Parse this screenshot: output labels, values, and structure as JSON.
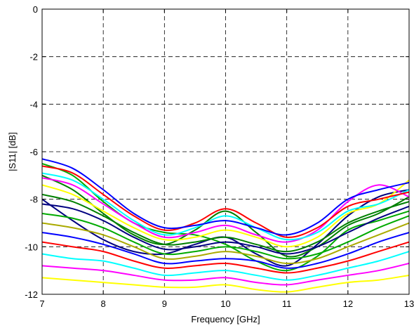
{
  "chart_data": {
    "type": "line",
    "xlabel": "Frequency [GHz]",
    "ylabel": "|S11| [dB]",
    "xlim": [
      7,
      13
    ],
    "ylim": [
      -12,
      0
    ],
    "xticks": [
      "7",
      "8",
      "9",
      "10",
      "11",
      "12",
      "13"
    ],
    "yticks": [
      "0",
      "-2",
      "-4",
      "-6",
      "-8",
      "-10",
      "-12"
    ],
    "grid": true,
    "grid_style": "dashed",
    "colors": [
      "#0000ff",
      "#ff0000",
      "#00ffff",
      "#ff00ff",
      "#ffff00",
      "#008000",
      "#000080",
      "#00aa00",
      "#aaaa00"
    ],
    "series": [
      {
        "x": [
          7,
          7.5,
          8,
          8.5,
          9,
          9.5,
          10,
          10.5,
          11,
          11.5,
          12,
          12.5,
          13
        ],
        "y": [
          -6.3,
          -6.7,
          -7.6,
          -8.6,
          -9.2,
          -9.1,
          -8.9,
          -9.2,
          -9.5,
          -9.0,
          -8.0,
          -7.6,
          -7.3
        ]
      },
      {
        "x": [
          7,
          7.5,
          8,
          8.5,
          9,
          9.5,
          10,
          10.5,
          11,
          11.5,
          12,
          12.5,
          13
        ],
        "y": [
          -6.6,
          -6.9,
          -7.8,
          -8.7,
          -9.3,
          -9.0,
          -8.4,
          -9.0,
          -9.6,
          -9.2,
          -8.3,
          -8.0,
          -7.7
        ]
      },
      {
        "x": [
          7,
          7.5,
          8,
          8.5,
          9,
          9.5,
          10,
          10.5,
          11,
          11.5,
          12,
          12.5,
          13
        ],
        "y": [
          -6.9,
          -7.2,
          -8.0,
          -8.9,
          -9.5,
          -9.2,
          -8.7,
          -9.2,
          -9.7,
          -9.4,
          -8.5,
          -8.2,
          -7.6
        ]
      },
      {
        "x": [
          7,
          7.5,
          8,
          8.5,
          9,
          9.5,
          10,
          10.5,
          11,
          11.5,
          12,
          12.5,
          13
        ],
        "y": [
          -7.1,
          -7.4,
          -8.2,
          -9.0,
          -9.6,
          -9.4,
          -9.1,
          -9.5,
          -9.8,
          -9.3,
          -8.1,
          -7.4,
          -7.9
        ]
      },
      {
        "x": [
          7,
          7.5,
          8,
          8.5,
          9,
          9.5,
          10,
          10.5,
          11,
          11.5,
          12,
          12.5,
          13
        ],
        "y": [
          -7.4,
          -7.8,
          -8.5,
          -9.2,
          -9.7,
          -9.6,
          -9.3,
          -9.6,
          -10.0,
          -9.6,
          -8.6,
          -8.2,
          -7.2
        ]
      },
      {
        "x": [
          7,
          7.5,
          8,
          8.5,
          9,
          9.5,
          10,
          10.5,
          11,
          11.5,
          12,
          12.5,
          13
        ],
        "y": [
          -7.8,
          -8.1,
          -8.7,
          -9.4,
          -9.9,
          -9.8,
          -9.6,
          -9.9,
          -10.2,
          -9.8,
          -9.0,
          -8.5,
          -8.1
        ]
      },
      {
        "x": [
          7,
          7.5,
          8,
          8.5,
          9,
          9.5,
          10,
          10.5,
          11,
          11.5,
          12,
          12.5,
          13
        ],
        "y": [
          -8.2,
          -8.4,
          -8.9,
          -9.6,
          -10.1,
          -10.0,
          -9.8,
          -10.0,
          -10.3,
          -10.0,
          -9.4,
          -8.8,
          -8.3
        ]
      },
      {
        "x": [
          7,
          7.5,
          8,
          8.5,
          9,
          9.5,
          10,
          10.5,
          11,
          11.5,
          12,
          12.5,
          13
        ],
        "y": [
          -8.6,
          -8.8,
          -9.2,
          -9.8,
          -10.3,
          -10.2,
          -10.0,
          -10.2,
          -10.5,
          -10.3,
          -9.8,
          -9.2,
          -8.7
        ]
      },
      {
        "x": [
          7,
          7.5,
          8,
          8.5,
          9,
          9.5,
          10,
          10.5,
          11,
          11.5,
          12,
          12.5,
          13
        ],
        "y": [
          -9.0,
          -9.2,
          -9.5,
          -10.0,
          -10.5,
          -10.4,
          -10.2,
          -10.4,
          -10.7,
          -10.5,
          -10.0,
          -9.5,
          -9.0
        ]
      },
      {
        "x": [
          7,
          7.5,
          8,
          8.5,
          9,
          9.5,
          10,
          10.5,
          11,
          11.5,
          12,
          12.5,
          13
        ],
        "y": [
          -9.4,
          -9.6,
          -9.9,
          -10.3,
          -10.7,
          -10.6,
          -10.5,
          -10.6,
          -10.9,
          -10.7,
          -10.3,
          -9.8,
          -9.4
        ]
      },
      {
        "x": [
          7,
          7.5,
          8,
          8.5,
          9,
          9.5,
          10,
          10.5,
          11,
          11.5,
          12,
          12.5,
          13
        ],
        "y": [
          -9.8,
          -10.0,
          -10.2,
          -10.6,
          -10.9,
          -10.8,
          -10.7,
          -10.9,
          -11.1,
          -10.9,
          -10.6,
          -10.2,
          -9.8
        ]
      },
      {
        "x": [
          7,
          7.5,
          8,
          8.5,
          9,
          9.5,
          10,
          10.5,
          11,
          11.5,
          12,
          12.5,
          13
        ],
        "y": [
          -10.3,
          -10.5,
          -10.6,
          -10.9,
          -11.2,
          -11.1,
          -11.0,
          -11.2,
          -11.4,
          -11.2,
          -10.9,
          -10.6,
          -10.2
        ]
      },
      {
        "x": [
          7,
          7.5,
          8,
          8.5,
          9,
          9.5,
          10,
          10.5,
          11,
          11.5,
          12,
          12.5,
          13
        ],
        "y": [
          -10.8,
          -10.9,
          -11.0,
          -11.2,
          -11.4,
          -11.4,
          -11.3,
          -11.5,
          -11.6,
          -11.4,
          -11.2,
          -11.0,
          -10.7
        ]
      },
      {
        "x": [
          7,
          7.5,
          8,
          8.5,
          9,
          9.5,
          10,
          10.5,
          11,
          11.5,
          12,
          12.5,
          13
        ],
        "y": [
          -11.3,
          -11.4,
          -11.5,
          -11.6,
          -11.7,
          -11.7,
          -11.6,
          -11.8,
          -11.9,
          -11.7,
          -11.5,
          -11.4,
          -11.2
        ]
      },
      {
        "x": [
          7,
          7.5,
          8,
          8.5,
          9,
          9.5,
          10,
          10.5,
          11,
          11.5,
          12,
          12.5,
          13
        ],
        "y": [
          -7.0,
          -7.6,
          -8.6,
          -9.5,
          -9.9,
          -9.3,
          -8.5,
          -9.4,
          -10.4,
          -10.0,
          -9.1,
          -8.6,
          -7.9
        ]
      },
      {
        "x": [
          7,
          7.5,
          8,
          8.5,
          9,
          9.5,
          10,
          10.5,
          11,
          11.5,
          12,
          12.5,
          13
        ],
        "y": [
          -8.0,
          -8.9,
          -9.7,
          -10.2,
          -10.3,
          -9.9,
          -9.6,
          -10.3,
          -10.8,
          -9.9,
          -8.7,
          -7.9,
          -7.6
        ]
      },
      {
        "x": [
          7,
          7.5,
          8,
          8.5,
          9,
          9.5,
          10,
          10.5,
          11,
          11.5,
          12,
          12.5,
          13
        ],
        "y": [
          -6.5,
          -7.0,
          -8.1,
          -9.0,
          -9.4,
          -9.5,
          -9.9,
          -10.6,
          -11.0,
          -10.4,
          -9.3,
          -8.9,
          -8.5
        ]
      }
    ]
  }
}
